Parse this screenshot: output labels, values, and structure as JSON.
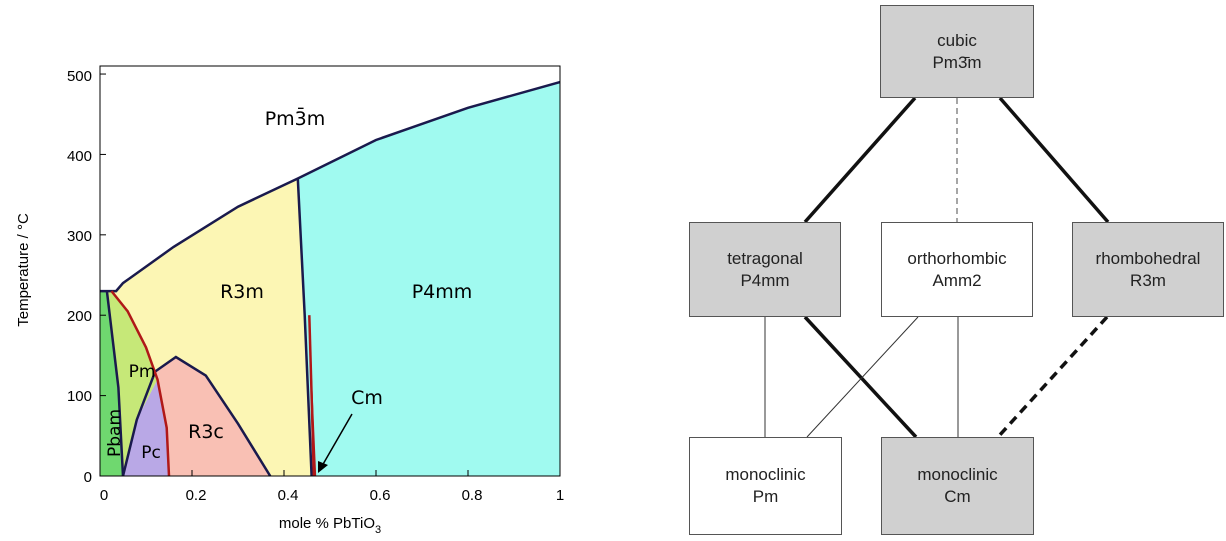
{
  "phase_diagram": {
    "xlabel_main": "mole % PbTiO",
    "xlabel_sub": "3",
    "ylabel": "Temperature / °C",
    "x_ticks": [
      "0",
      "0.2",
      "0.4",
      "0.6",
      "0.8",
      "1"
    ],
    "y_ticks": [
      "0",
      "100",
      "200",
      "300",
      "400",
      "500"
    ],
    "phases": {
      "cubic": "Pm3̄m",
      "r3m": "R3m",
      "p4mm": "P4mm",
      "pm": "Pm",
      "pbam": "Pbam",
      "pc": "Pc",
      "r3c": "R3c",
      "cm": "Cm"
    },
    "colors": {
      "cubic": "#ffffff",
      "r3m": "#fcf6b4",
      "p4mm": "#a0faf0",
      "pm": "#c6e878",
      "pbam": "#6fd86f",
      "pc": "#b9a8e6",
      "r3c": "#f9c0b4",
      "boundary": "#1a1a4d",
      "red_boundary": "#b01818"
    }
  },
  "hierarchy": {
    "top": {
      "line1": "cubic",
      "line2": "Pm3̄m"
    },
    "middle": [
      {
        "line1": "tetragonal",
        "line2": "P4mm"
      },
      {
        "line1": "orthorhombic",
        "line2": "Amm2"
      },
      {
        "line1": "rhombohedral",
        "line2": "R3m"
      }
    ],
    "bottom": [
      {
        "line1": "monoclinic",
        "line2": "Pm"
      },
      {
        "line1": "monoclinic",
        "line2": "Cm"
      }
    ]
  },
  "chart_data": {
    "type": "area",
    "xlabel": "mole % PbTiO3",
    "ylabel": "Temperature / °C",
    "xlim": [
      0,
      1
    ],
    "ylim": [
      0,
      510
    ],
    "boundaries": [
      {
        "name": "cubic upper boundary",
        "x": [
          0,
          0.035,
          0.05,
          0.16,
          0.3,
          0.43,
          0.6,
          0.8,
          1.0
        ],
        "y": [
          230,
          230,
          240,
          285,
          335,
          370,
          418,
          458,
          490
        ]
      },
      {
        "name": "R3m-P4mm",
        "x": [
          0.43,
          0.445,
          0.46
        ],
        "y": [
          370,
          200,
          0
        ]
      },
      {
        "name": "R3c dome",
        "x": [
          0.05,
          0.08,
          0.12,
          0.165,
          0.23,
          0.3,
          0.37
        ],
        "y": [
          0,
          70,
          130,
          148,
          125,
          65,
          0
        ]
      }
    ]
  }
}
